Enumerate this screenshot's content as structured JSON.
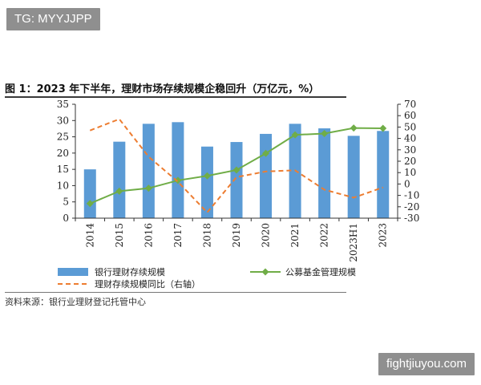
{
  "watermarks": {
    "top": "TG: MYYJJPP",
    "bottom": "fightjiuyou.com"
  },
  "title": "图 1：2023 年下半年，理财市场存续规模企稳回升（万亿元，%）",
  "source": "资料来源：银行业理财登记托管中心",
  "colors": {
    "bar": "#5b9bd5",
    "green": "#70ad47",
    "orange": "#ed7d31",
    "axis": "#333333"
  },
  "chart_data": {
    "type": "bar",
    "categories": [
      "2014",
      "2015",
      "2016",
      "2017",
      "2018",
      "2019",
      "2020",
      "2021",
      "2022",
      "2023H1",
      "2023"
    ],
    "y_left": {
      "range": [
        0,
        35
      ],
      "ticks": [
        0,
        5,
        10,
        15,
        20,
        25,
        30,
        35
      ]
    },
    "y_right": {
      "range": [
        -30,
        70
      ],
      "ticks": [
        -30,
        -20,
        -10,
        0,
        10,
        20,
        30,
        40,
        50,
        60,
        70
      ]
    },
    "series": [
      {
        "name": "银行理财存续规模",
        "type": "bar",
        "axis": "left",
        "values": [
          15.0,
          23.5,
          29.0,
          29.5,
          22.0,
          23.4,
          25.9,
          29.0,
          27.6,
          25.3,
          26.8
        ]
      },
      {
        "name": "公募基金管理规模",
        "type": "line",
        "axis": "left",
        "marker": "diamond",
        "values": [
          4.5,
          8.3,
          9.2,
          11.6,
          13.0,
          14.8,
          19.9,
          25.6,
          26.0,
          27.7,
          27.6
        ]
      },
      {
        "name": "理财存续规模同比（右轴）",
        "type": "line",
        "axis": "right",
        "dash": true,
        "values": [
          47,
          57,
          24,
          2,
          -25,
          6,
          11,
          12,
          -5,
          -12,
          -3
        ]
      }
    ],
    "legend_position": "bottom"
  }
}
